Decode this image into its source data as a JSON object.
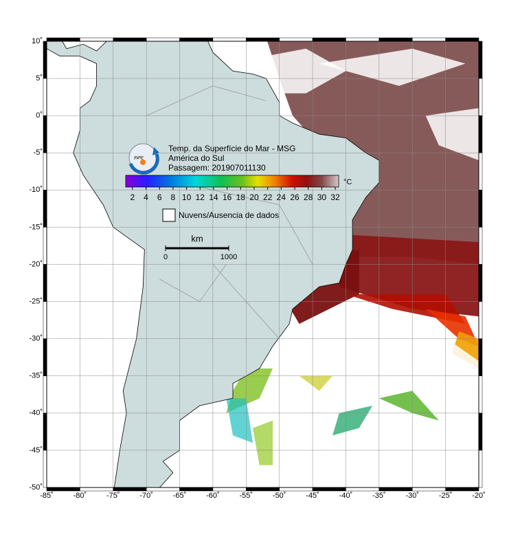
{
  "map": {
    "title": "Temp. da Superfície do Mar - MSG",
    "subtitle": "América do Sul",
    "pass": "Passagem: 201907011130",
    "logo": "INPE",
    "colorbar": {
      "unit": "°C",
      "range": [
        1,
        32.5
      ],
      "ticks": [
        2,
        4,
        6,
        8,
        10,
        12,
        14,
        16,
        18,
        20,
        22,
        24,
        26,
        28,
        30,
        32
      ]
    },
    "legend": "Nuvens/Ausencia de dados",
    "scale": {
      "unit": "km",
      "ticks": [
        0,
        1000
      ]
    },
    "lon": {
      "range": [
        -85,
        -20
      ],
      "ticks": [
        {
          "value": -85,
          "label": "-85˚"
        },
        {
          "value": -80,
          "label": "-80˚"
        },
        {
          "value": -75,
          "label": "-75˚"
        },
        {
          "value": -70,
          "label": "-70˚"
        },
        {
          "value": -65,
          "label": "-65˚"
        },
        {
          "value": -60,
          "label": "-60˚"
        },
        {
          "value": -55,
          "label": "-55˚"
        },
        {
          "value": -50,
          "label": "-50˚"
        },
        {
          "value": -45,
          "label": "-45˚"
        },
        {
          "value": -40,
          "label": "-40˚"
        },
        {
          "value": -35,
          "label": "-35˚"
        },
        {
          "value": -30,
          "label": "-30˚"
        },
        {
          "value": -25,
          "label": "-25˚"
        },
        {
          "value": -20,
          "label": "-20˚"
        }
      ]
    },
    "lat": {
      "range": [
        10,
        -50
      ],
      "ticks": [
        {
          "value": 10,
          "label": "10˚"
        },
        {
          "value": 5,
          "label": "5˚"
        },
        {
          "value": 0,
          "label": "0˚"
        },
        {
          "value": -5,
          "label": "-5˚"
        },
        {
          "value": -10,
          "label": "-10˚"
        },
        {
          "value": -15,
          "label": "-15˚"
        },
        {
          "value": -20,
          "label": "-20˚"
        },
        {
          "value": -25,
          "label": "-25˚"
        },
        {
          "value": -30,
          "label": "-30˚"
        },
        {
          "value": -35,
          "label": "-35˚"
        },
        {
          "value": -40,
          "label": "-40˚"
        },
        {
          "value": -45,
          "label": "-45˚"
        },
        {
          "value": -50,
          "label": "-50˚"
        }
      ]
    }
  }
}
